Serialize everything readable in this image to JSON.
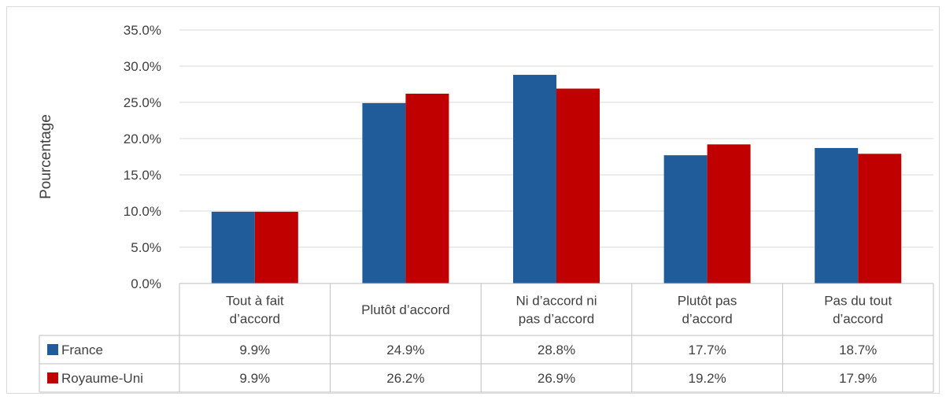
{
  "chart_data": {
    "type": "bar",
    "title": "",
    "xlabel": "",
    "ylabel": "Pourcentage",
    "ylim": [
      0,
      35
    ],
    "y_ticks": [
      "0.0%",
      "5.0%",
      "10.0%",
      "15.0%",
      "20.0%",
      "25.0%",
      "30.0%",
      "35.0%"
    ],
    "grid": true,
    "legend": "data-table",
    "categories": [
      [
        "Tout à fait",
        "d’accord"
      ],
      [
        "Plutôt d’accord"
      ],
      [
        "Ni d’accord ni",
        "pas d’accord"
      ],
      [
        "Plutôt pas",
        "d’accord"
      ],
      [
        "Pas du tout",
        "d’accord"
      ]
    ],
    "series": [
      {
        "name": "France",
        "color": "#1f5c99",
        "values": [
          9.9,
          24.9,
          28.8,
          17.7,
          18.7
        ],
        "labels": [
          "9.9%",
          "24.9%",
          "28.8%",
          "17.7%",
          "18.7%"
        ]
      },
      {
        "name": "Royaume-Uni",
        "color": "#c00000",
        "values": [
          9.9,
          26.2,
          26.9,
          19.2,
          17.9
        ],
        "labels": [
          "9.9%",
          "26.2%",
          "26.9%",
          "19.2%",
          "17.9%"
        ]
      }
    ]
  }
}
